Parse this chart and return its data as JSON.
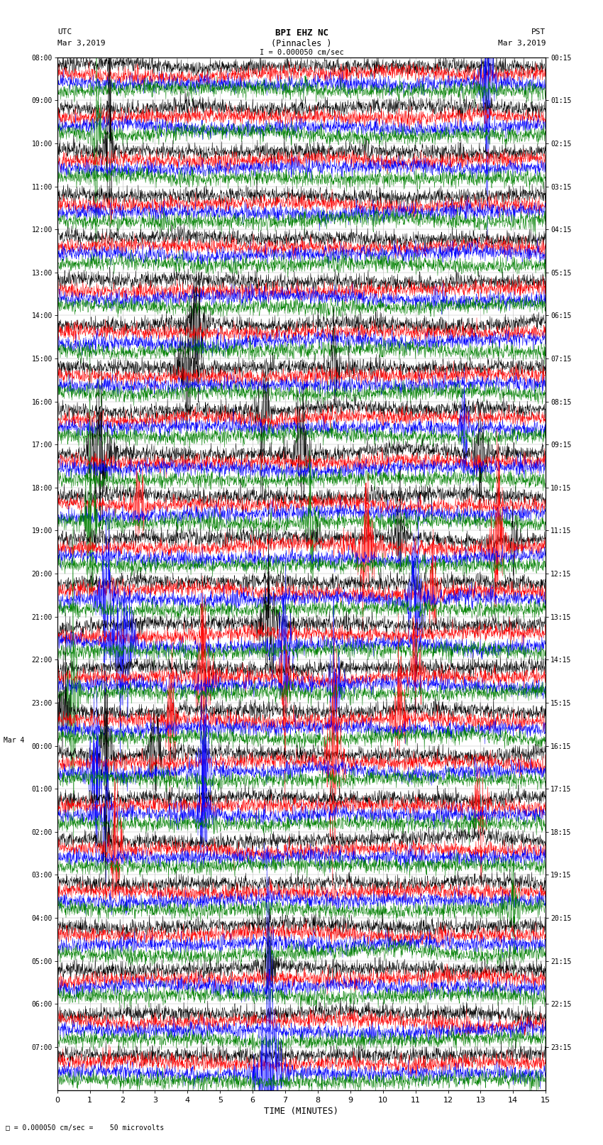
{
  "title_line1": "BPI EHZ NC",
  "title_line2": "(Pinnacles )",
  "scale_label": "I = 0.000050 cm/sec",
  "footer_label": "= 0.000050 cm/sec =    50 microvolts",
  "utc_label": "UTC",
  "pst_label": "PST",
  "date_left": "Mar 3,2019",
  "date_right": "Mar 3,2019",
  "xlabel": "TIME (MINUTES)",
  "left_times": [
    "08:00",
    "09:00",
    "10:00",
    "11:00",
    "12:00",
    "13:00",
    "14:00",
    "15:00",
    "16:00",
    "17:00",
    "18:00",
    "19:00",
    "20:00",
    "21:00",
    "22:00",
    "23:00",
    "00:00",
    "01:00",
    "02:00",
    "03:00",
    "04:00",
    "05:00",
    "06:00",
    "07:00"
  ],
  "right_times": [
    "00:15",
    "01:15",
    "02:15",
    "03:15",
    "04:15",
    "05:15",
    "06:15",
    "07:15",
    "08:15",
    "09:15",
    "10:15",
    "11:15",
    "12:15",
    "13:15",
    "14:15",
    "15:15",
    "16:15",
    "17:15",
    "18:15",
    "19:15",
    "20:15",
    "21:15",
    "22:15",
    "23:15"
  ],
  "mar4_row": 16,
  "n_rows": 24,
  "n_traces_per_row": 4,
  "colors": [
    "black",
    "red",
    "blue",
    "green"
  ],
  "bg_color": "#ffffff",
  "grid_color": "#bbbbbb",
  "xlim": [
    0,
    15
  ],
  "xticks": [
    0,
    1,
    2,
    3,
    4,
    5,
    6,
    7,
    8,
    9,
    10,
    11,
    12,
    13,
    14,
    15
  ],
  "trace_amp": 0.09,
  "noise_level": 0.018,
  "lw": 0.35
}
